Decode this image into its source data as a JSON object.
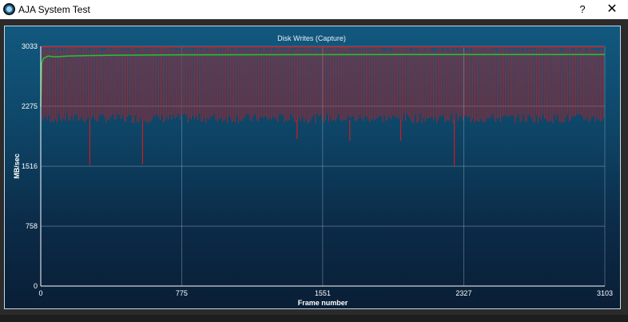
{
  "window": {
    "title": "AJA System Test",
    "help_label": "?",
    "close_label": "✕"
  },
  "chart_data": {
    "type": "line",
    "title": "Disk Writes (Capture)",
    "xlabel": "Frame number",
    "ylabel": "MB/sec",
    "xlim": [
      0,
      3103
    ],
    "ylim": [
      0,
      3033
    ],
    "x_ticks": [
      "0",
      "775",
      "1551",
      "2327",
      "3103"
    ],
    "y_ticks": [
      "0",
      "758",
      "1516",
      "2275",
      "3033"
    ],
    "grid": true,
    "series": [
      {
        "color": "#d01c1c",
        "style": "vertical-bars",
        "typical_high": 3033,
        "typical_low": 2100,
        "dips": [
          {
            "x": 270,
            "y": 1530
          },
          {
            "x": 560,
            "y": 1540
          },
          {
            "x": 1410,
            "y": 1860
          },
          {
            "x": 1700,
            "y": 1840
          },
          {
            "x": 1980,
            "y": 1840
          },
          {
            "x": 2275,
            "y": 1520
          }
        ]
      },
      {
        "color": "#22c435",
        "style": "line",
        "x": [
          0,
          5,
          15,
          40,
          80,
          150,
          250,
          400,
          775,
          1551,
          2327,
          3103
        ],
        "y": [
          2270,
          2820,
          2880,
          2910,
          2900,
          2910,
          2915,
          2920,
          2925,
          2928,
          2930,
          2930
        ]
      }
    ]
  }
}
